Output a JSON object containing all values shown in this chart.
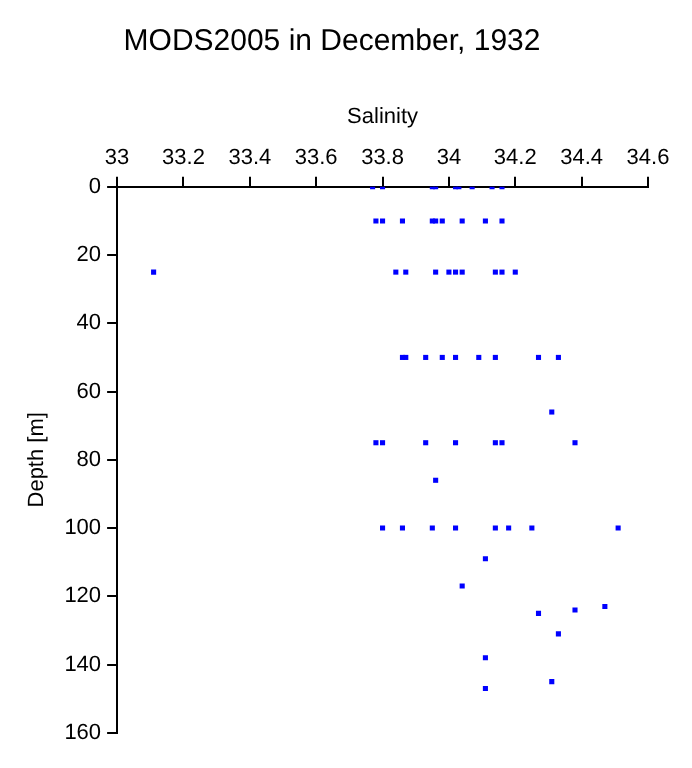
{
  "chart_data": {
    "type": "scatter",
    "title": "MODS2005 in December, 1932",
    "xlabel": "Salinity",
    "ylabel": "Depth [m]",
    "xlim": [
      33,
      34.6
    ],
    "xticks": [
      33,
      33.2,
      33.4,
      33.6,
      33.8,
      34,
      34.2,
      34.4,
      34.6
    ],
    "ylim": [
      160,
      0
    ],
    "yticks": [
      0,
      20,
      40,
      60,
      80,
      100,
      120,
      140,
      160
    ],
    "grid": false,
    "legend": false,
    "marker": "square",
    "series": [
      {
        "color": "#0000ff",
        "x": [
          33.77,
          33.8,
          33.95,
          33.96,
          34.02,
          34.03,
          34.07,
          34.13,
          34.16,
          33.78,
          33.8,
          33.86,
          33.95,
          33.96,
          33.98,
          34.04,
          34.11,
          34.16,
          33.11,
          33.84,
          33.87,
          33.96,
          34.0,
          34.02,
          34.04,
          34.14,
          34.16,
          34.2,
          33.86,
          33.87,
          33.93,
          33.98,
          34.02,
          34.09,
          34.14,
          34.27,
          34.33,
          34.31,
          33.78,
          33.8,
          33.93,
          34.02,
          34.14,
          34.16,
          34.38,
          33.96,
          33.8,
          33.86,
          33.95,
          34.02,
          34.14,
          34.18,
          34.25,
          34.51,
          34.11,
          34.04,
          34.27,
          34.38,
          34.47,
          34.33,
          34.11,
          34.31,
          34.11
        ],
        "values": [
          0,
          0,
          0,
          0,
          0,
          0,
          0,
          0,
          0,
          10,
          10,
          10,
          10,
          10,
          10,
          10,
          10,
          10,
          25,
          25,
          25,
          25,
          25,
          25,
          25,
          25,
          25,
          25,
          50,
          50,
          50,
          50,
          50,
          50,
          50,
          50,
          50,
          66,
          75,
          75,
          75,
          75,
          75,
          75,
          75,
          86,
          100,
          100,
          100,
          100,
          100,
          100,
          100,
          100,
          109,
          117,
          125,
          124,
          123,
          131,
          138,
          145,
          147
        ]
      }
    ]
  }
}
